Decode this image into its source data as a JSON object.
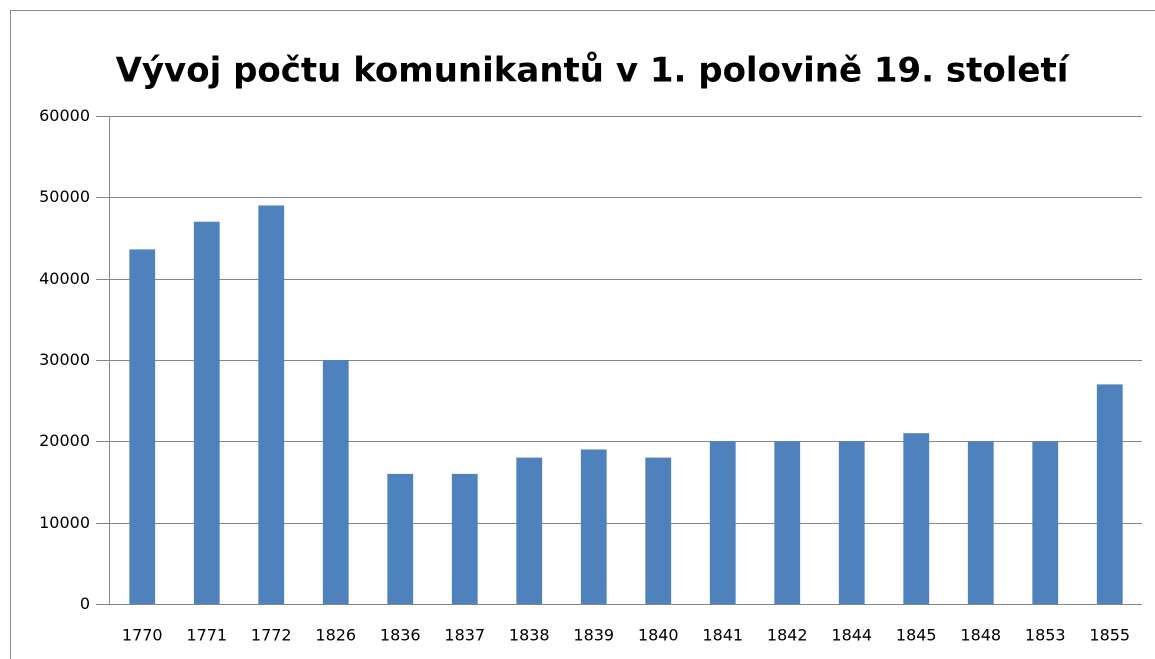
{
  "chart_data": {
    "type": "bar",
    "title": "Vývoj počtu komunikantů v 1. polovině 19. století",
    "categories": [
      "1770",
      "1771",
      "1772",
      "1826",
      "1836",
      "1837",
      "1838",
      "1839",
      "1840",
      "1841",
      "1842",
      "1844",
      "1845",
      "1848",
      "1853",
      "1855"
    ],
    "values": [
      43600,
      47000,
      49000,
      30000,
      16000,
      16000,
      18000,
      19000,
      18000,
      20000,
      20000,
      20000,
      21000,
      20000,
      20000,
      27000
    ],
    "color": "#4f81bd",
    "ylim": [
      0,
      60000
    ],
    "yticks": [
      0,
      10000,
      20000,
      30000,
      40000,
      50000,
      60000
    ],
    "grid": true
  }
}
